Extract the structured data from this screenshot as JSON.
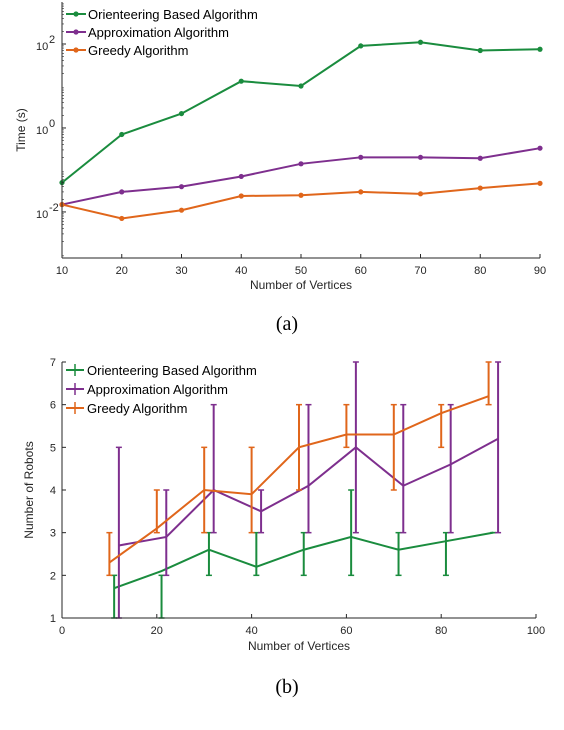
{
  "colors": {
    "orienteering": "#1a8c3e",
    "approximation": "#7e2f8e",
    "greedy": "#e0661b",
    "axis": "#262626"
  },
  "chart_data": [
    {
      "type": "line",
      "yscale": "log",
      "xlabel": "Number of Vertices",
      "ylabel": "Time (s)",
      "caption": "(a)",
      "xlim": [
        10,
        90
      ],
      "ylim": [
        0.0008,
        1000
      ],
      "legend_position": "top-left",
      "grid": false,
      "x_ticks": [
        "10",
        "20",
        "30",
        "40",
        "50",
        "60",
        "70",
        "80",
        "90"
      ],
      "y_ticks": [
        {
          "value": 0.01,
          "base": "10",
          "exp": "-2"
        },
        {
          "value": 1,
          "base": "10",
          "exp": "0"
        },
        {
          "value": 100,
          "base": "10",
          "exp": "2"
        }
      ],
      "x": [
        10,
        20,
        30,
        40,
        50,
        60,
        70,
        80,
        90
      ],
      "series": [
        {
          "name": "Orienteering Based Algorithm",
          "color": "#1a8c3e",
          "values": [
            0.05,
            0.7,
            2.2,
            13,
            10,
            90,
            110,
            70,
            75
          ]
        },
        {
          "name": "Approximation Algorithm",
          "color": "#7e2f8e",
          "values": [
            0.015,
            0.03,
            0.04,
            0.07,
            0.14,
            0.2,
            0.2,
            0.19,
            0.33
          ]
        },
        {
          "name": "Greedy Algorithm",
          "color": "#e0661b",
          "values": [
            0.015,
            0.007,
            0.011,
            0.024,
            0.025,
            0.03,
            0.027,
            0.037,
            0.048
          ]
        }
      ]
    },
    {
      "type": "line",
      "errorbars": true,
      "xlabel": "Number of Vertices",
      "ylabel": "Number of Robots",
      "caption": "(b)",
      "xlim": [
        0,
        100
      ],
      "ylim": [
        1,
        7
      ],
      "legend_position": "top-left",
      "grid": false,
      "x_ticks": [
        "0",
        "20",
        "40",
        "60",
        "80",
        "100"
      ],
      "y_ticks": [
        "1",
        "2",
        "3",
        "4",
        "5",
        "6",
        "7"
      ],
      "series": [
        {
          "name": "Orienteering Based Algorithm",
          "color": "#1a8c3e",
          "x": [
            11,
            21,
            31,
            41,
            51,
            61,
            71,
            81,
            91
          ],
          "values": [
            1.7,
            2.1,
            2.6,
            2.2,
            2.6,
            2.9,
            2.6,
            2.8,
            3.0
          ],
          "err_low": [
            1,
            1,
            2,
            2,
            2,
            2,
            2,
            2,
            3
          ],
          "err_high": [
            2,
            2,
            3,
            3,
            3,
            4,
            3,
            3,
            3
          ]
        },
        {
          "name": "Approximation Algorithm",
          "color": "#7e2f8e",
          "x": [
            12,
            22,
            32,
            42,
            52,
            62,
            72,
            82,
            92
          ],
          "values": [
            2.7,
            2.9,
            4.0,
            3.5,
            4.1,
            5.0,
            4.1,
            4.6,
            5.2
          ],
          "err_low": [
            1,
            2,
            3,
            3,
            3,
            3,
            3,
            3,
            3
          ],
          "err_high": [
            5,
            4,
            6,
            4,
            6,
            7,
            6,
            6,
            7
          ]
        },
        {
          "name": "Greedy Algorithm",
          "color": "#e0661b",
          "x": [
            10,
            20,
            30,
            40,
            50,
            60,
            70,
            80,
            90
          ],
          "values": [
            2.3,
            3.1,
            4.0,
            3.9,
            5.0,
            5.3,
            5.3,
            5.8,
            6.2
          ],
          "err_low": [
            2,
            3,
            3,
            3,
            4,
            5,
            4,
            5,
            6
          ],
          "err_high": [
            3,
            4,
            5,
            5,
            6,
            6,
            6,
            6,
            7
          ]
        }
      ]
    }
  ]
}
